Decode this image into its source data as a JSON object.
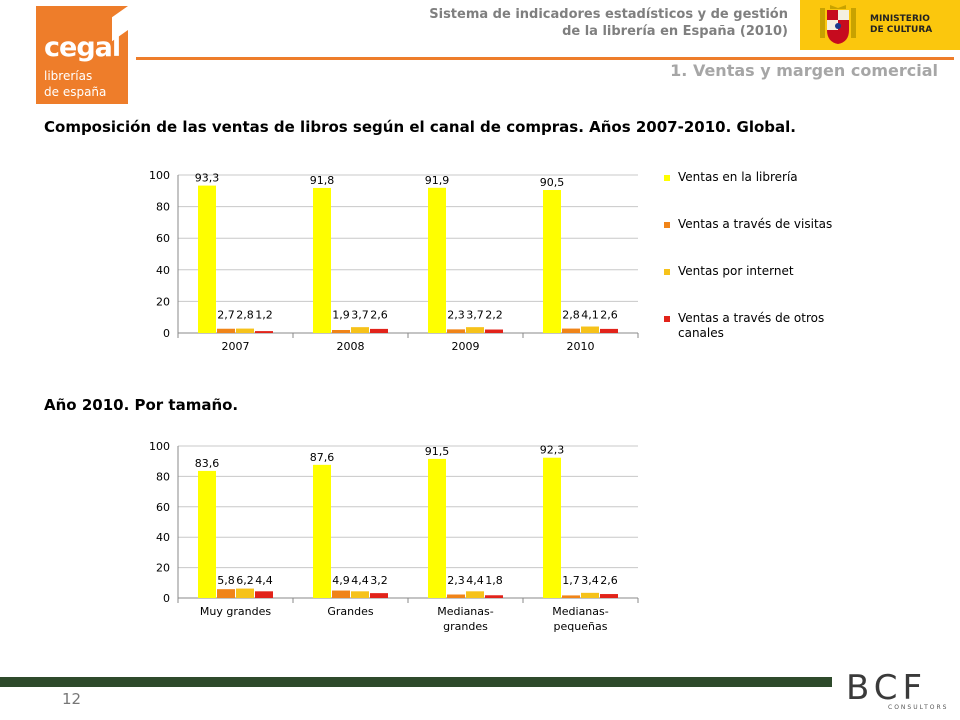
{
  "header": {
    "title_line1": "Sistema de indicadores estadísticos y de gestión",
    "title_line2": "de la librería en España (2010)",
    "ministry_line1": "MINISTERIO",
    "ministry_line2": "DE CULTURA",
    "section": "1. Ventas y margen comercial"
  },
  "logo": {
    "line1": "cegal",
    "line2": "librerías",
    "line3": "de españa"
  },
  "footer": {
    "page_number": "12",
    "brand": "BCF",
    "brand_sub": "CONSULTORS"
  },
  "colors": {
    "yellow": "#ffff00",
    "orange": "#f08418",
    "gold": "#f6c21a",
    "red": "#e2231a"
  },
  "chart_data": [
    {
      "type": "bar",
      "title": "Composición de las ventas de libros según el canal de compras. Años 2007-2010. Global.",
      "categories": [
        "2007",
        "2008",
        "2009",
        "2010"
      ],
      "ylim": [
        0,
        100
      ],
      "yticks": [
        "0",
        "20",
        "40",
        "60",
        "80",
        "100"
      ],
      "legend_position": "right",
      "series": [
        {
          "name": "Ventas en la librería",
          "values": [
            93.3,
            91.8,
            91.9,
            90.5
          ],
          "labels": [
            "93,3",
            "91,8",
            "91,9",
            "90,5"
          ]
        },
        {
          "name": "Ventas a través de visitas",
          "values": [
            2.7,
            1.9,
            2.3,
            2.8
          ],
          "labels": [
            "2,7",
            "1,9",
            "2,3",
            "2,8"
          ]
        },
        {
          "name": "Ventas por internet",
          "values": [
            2.8,
            3.7,
            3.7,
            4.1
          ],
          "labels": [
            "2,8",
            "3,7",
            "3,7",
            "4,1"
          ]
        },
        {
          "name": "Ventas a través de otros canales",
          "values": [
            1.2,
            2.6,
            2.2,
            2.6
          ],
          "labels": [
            "1,2",
            "2,6",
            "2,2",
            "2,6"
          ]
        }
      ]
    },
    {
      "type": "bar",
      "title": "Año 2010. Por tamaño.",
      "categories": [
        "Muy grandes",
        "Grandes",
        "Medianas-grandes",
        "Medianas-pequeñas"
      ],
      "category_lines": [
        [
          "Muy grandes"
        ],
        [
          "Grandes"
        ],
        [
          "Medianas-",
          "grandes"
        ],
        [
          "Medianas-",
          "pequeñas"
        ]
      ],
      "ylim": [
        0,
        100
      ],
      "yticks": [
        "0",
        "20",
        "40",
        "60",
        "80",
        "100"
      ],
      "series": [
        {
          "values": [
            83.6,
            87.6,
            91.5,
            92.3
          ],
          "labels": [
            "83,6",
            "87,6",
            "91,5",
            "92,3"
          ]
        },
        {
          "values": [
            5.8,
            4.9,
            2.3,
            1.7
          ],
          "labels": [
            "5,8",
            "4,9",
            "2,3",
            "1,7"
          ]
        },
        {
          "values": [
            6.2,
            4.4,
            4.4,
            3.4
          ],
          "labels": [
            "6,2",
            "4,4",
            "4,4",
            "3,4"
          ]
        },
        {
          "values": [
            4.4,
            3.2,
            1.8,
            2.6
          ],
          "labels": [
            "4,4",
            "3,2",
            "1,8",
            "2,6"
          ]
        }
      ]
    }
  ]
}
